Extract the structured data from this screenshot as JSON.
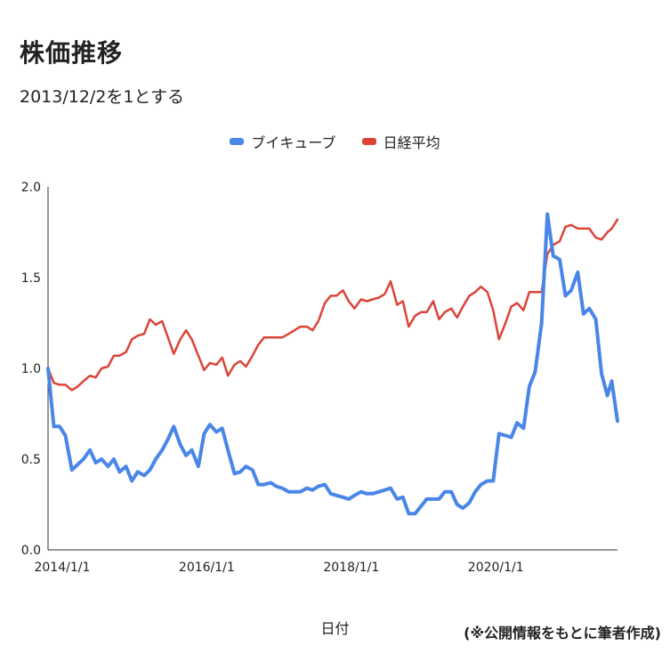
{
  "title": "株価推移",
  "subtitle": "2013/12/2を1とする",
  "source_note": "(※公開情報をもとに筆者作成)",
  "chart_data": {
    "type": "line",
    "xlabel": "日付",
    "ylabel": "",
    "ylim": [
      0.0,
      2.0
    ],
    "y_ticks": [
      "0.0",
      "0.5",
      "1.0",
      "1.5",
      "2.0"
    ],
    "x_ticks": [
      "2014/1/1",
      "2016/1/1",
      "2018/1/1",
      "2020/1/1"
    ],
    "x_tick_values": [
      2014.0,
      2016.0,
      2018.0,
      2020.0
    ],
    "x_range": [
      2013.92,
      2021.8
    ],
    "grid": false,
    "legend": "top",
    "series": [
      {
        "name": "ブイキューブ",
        "color": "#4a86e8",
        "points": [
          [
            2013.92,
            1.0
          ],
          [
            2014.0,
            0.68
          ],
          [
            2014.08,
            0.68
          ],
          [
            2014.16,
            0.63
          ],
          [
            2014.25,
            0.44
          ],
          [
            2014.33,
            0.47
          ],
          [
            2014.41,
            0.5
          ],
          [
            2014.5,
            0.55
          ],
          [
            2014.58,
            0.48
          ],
          [
            2014.66,
            0.5
          ],
          [
            2014.75,
            0.46
          ],
          [
            2014.83,
            0.5
          ],
          [
            2014.91,
            0.43
          ],
          [
            2015.0,
            0.46
          ],
          [
            2015.08,
            0.38
          ],
          [
            2015.16,
            0.43
          ],
          [
            2015.25,
            0.41
          ],
          [
            2015.33,
            0.44
          ],
          [
            2015.41,
            0.5
          ],
          [
            2015.5,
            0.55
          ],
          [
            2015.58,
            0.61
          ],
          [
            2015.66,
            0.68
          ],
          [
            2015.75,
            0.58
          ],
          [
            2015.83,
            0.52
          ],
          [
            2015.91,
            0.55
          ],
          [
            2016.0,
            0.46
          ],
          [
            2016.08,
            0.64
          ],
          [
            2016.16,
            0.69
          ],
          [
            2016.25,
            0.65
          ],
          [
            2016.33,
            0.67
          ],
          [
            2016.41,
            0.55
          ],
          [
            2016.5,
            0.42
          ],
          [
            2016.58,
            0.43
          ],
          [
            2016.66,
            0.46
          ],
          [
            2016.75,
            0.44
          ],
          [
            2016.83,
            0.36
          ],
          [
            2016.91,
            0.36
          ],
          [
            2017.0,
            0.37
          ],
          [
            2017.08,
            0.35
          ],
          [
            2017.16,
            0.34
          ],
          [
            2017.25,
            0.32
          ],
          [
            2017.33,
            0.32
          ],
          [
            2017.41,
            0.32
          ],
          [
            2017.5,
            0.34
          ],
          [
            2017.58,
            0.33
          ],
          [
            2017.66,
            0.35
          ],
          [
            2017.75,
            0.36
          ],
          [
            2017.83,
            0.31
          ],
          [
            2017.91,
            0.3
          ],
          [
            2018.0,
            0.29
          ],
          [
            2018.08,
            0.28
          ],
          [
            2018.16,
            0.3
          ],
          [
            2018.25,
            0.32
          ],
          [
            2018.33,
            0.31
          ],
          [
            2018.41,
            0.31
          ],
          [
            2018.5,
            0.32
          ],
          [
            2018.58,
            0.33
          ],
          [
            2018.66,
            0.34
          ],
          [
            2018.75,
            0.28
          ],
          [
            2018.83,
            0.29
          ],
          [
            2018.91,
            0.2
          ],
          [
            2019.0,
            0.2
          ],
          [
            2019.08,
            0.24
          ],
          [
            2019.16,
            0.28
          ],
          [
            2019.25,
            0.28
          ],
          [
            2019.33,
            0.28
          ],
          [
            2019.41,
            0.32
          ],
          [
            2019.5,
            0.32
          ],
          [
            2019.58,
            0.25
          ],
          [
            2019.66,
            0.23
          ],
          [
            2019.75,
            0.26
          ],
          [
            2019.83,
            0.32
          ],
          [
            2019.91,
            0.36
          ],
          [
            2020.0,
            0.38
          ],
          [
            2020.08,
            0.38
          ],
          [
            2020.16,
            0.64
          ],
          [
            2020.25,
            0.63
          ],
          [
            2020.33,
            0.62
          ],
          [
            2020.41,
            0.7
          ],
          [
            2020.5,
            0.67
          ],
          [
            2020.58,
            0.9
          ],
          [
            2020.66,
            0.98
          ],
          [
            2020.75,
            1.25
          ],
          [
            2020.83,
            1.85
          ],
          [
            2020.91,
            1.62
          ],
          [
            2021.0,
            1.6
          ],
          [
            2021.08,
            1.4
          ],
          [
            2021.16,
            1.43
          ],
          [
            2021.25,
            1.53
          ],
          [
            2021.33,
            1.3
          ],
          [
            2021.41,
            1.33
          ],
          [
            2021.5,
            1.27
          ],
          [
            2021.58,
            0.97
          ],
          [
            2021.66,
            0.85
          ],
          [
            2021.72,
            0.93
          ],
          [
            2021.8,
            0.71
          ]
        ]
      },
      {
        "name": "日経平均",
        "color": "#db4437",
        "points": [
          [
            2013.92,
            1.0
          ],
          [
            2014.0,
            0.92
          ],
          [
            2014.08,
            0.91
          ],
          [
            2014.16,
            0.91
          ],
          [
            2014.25,
            0.88
          ],
          [
            2014.33,
            0.9
          ],
          [
            2014.41,
            0.93
          ],
          [
            2014.5,
            0.96
          ],
          [
            2014.58,
            0.95
          ],
          [
            2014.66,
            1.0
          ],
          [
            2014.75,
            1.01
          ],
          [
            2014.83,
            1.07
          ],
          [
            2014.91,
            1.07
          ],
          [
            2015.0,
            1.09
          ],
          [
            2015.08,
            1.16
          ],
          [
            2015.16,
            1.18
          ],
          [
            2015.25,
            1.19
          ],
          [
            2015.33,
            1.27
          ],
          [
            2015.41,
            1.24
          ],
          [
            2015.5,
            1.26
          ],
          [
            2015.58,
            1.17
          ],
          [
            2015.66,
            1.08
          ],
          [
            2015.75,
            1.16
          ],
          [
            2015.83,
            1.21
          ],
          [
            2015.91,
            1.16
          ],
          [
            2016.0,
            1.07
          ],
          [
            2016.08,
            0.99
          ],
          [
            2016.16,
            1.03
          ],
          [
            2016.25,
            1.02
          ],
          [
            2016.33,
            1.06
          ],
          [
            2016.41,
            0.96
          ],
          [
            2016.5,
            1.02
          ],
          [
            2016.58,
            1.04
          ],
          [
            2016.66,
            1.01
          ],
          [
            2016.75,
            1.07
          ],
          [
            2016.83,
            1.13
          ],
          [
            2016.91,
            1.17
          ],
          [
            2017.0,
            1.17
          ],
          [
            2017.08,
            1.17
          ],
          [
            2017.16,
            1.17
          ],
          [
            2017.25,
            1.19
          ],
          [
            2017.33,
            1.21
          ],
          [
            2017.41,
            1.23
          ],
          [
            2017.5,
            1.23
          ],
          [
            2017.58,
            1.21
          ],
          [
            2017.66,
            1.26
          ],
          [
            2017.75,
            1.36
          ],
          [
            2017.83,
            1.4
          ],
          [
            2017.91,
            1.4
          ],
          [
            2018.0,
            1.43
          ],
          [
            2018.08,
            1.37
          ],
          [
            2018.16,
            1.33
          ],
          [
            2018.25,
            1.38
          ],
          [
            2018.33,
            1.37
          ],
          [
            2018.41,
            1.38
          ],
          [
            2018.5,
            1.39
          ],
          [
            2018.58,
            1.41
          ],
          [
            2018.66,
            1.48
          ],
          [
            2018.75,
            1.35
          ],
          [
            2018.83,
            1.37
          ],
          [
            2018.91,
            1.23
          ],
          [
            2019.0,
            1.29
          ],
          [
            2019.08,
            1.31
          ],
          [
            2019.16,
            1.31
          ],
          [
            2019.25,
            1.37
          ],
          [
            2019.33,
            1.27
          ],
          [
            2019.41,
            1.31
          ],
          [
            2019.5,
            1.33
          ],
          [
            2019.58,
            1.28
          ],
          [
            2019.66,
            1.34
          ],
          [
            2019.75,
            1.4
          ],
          [
            2019.83,
            1.42
          ],
          [
            2019.91,
            1.45
          ],
          [
            2020.0,
            1.42
          ],
          [
            2020.08,
            1.32
          ],
          [
            2020.16,
            1.16
          ],
          [
            2020.25,
            1.25
          ],
          [
            2020.33,
            1.34
          ],
          [
            2020.41,
            1.36
          ],
          [
            2020.5,
            1.32
          ],
          [
            2020.58,
            1.42
          ],
          [
            2020.66,
            1.42
          ],
          [
            2020.75,
            1.42
          ],
          [
            2020.83,
            1.63
          ],
          [
            2020.91,
            1.68
          ],
          [
            2021.0,
            1.7
          ],
          [
            2021.08,
            1.78
          ],
          [
            2021.16,
            1.79
          ],
          [
            2021.25,
            1.77
          ],
          [
            2021.33,
            1.77
          ],
          [
            2021.41,
            1.77
          ],
          [
            2021.5,
            1.72
          ],
          [
            2021.58,
            1.71
          ],
          [
            2021.66,
            1.75
          ],
          [
            2021.72,
            1.77
          ],
          [
            2021.8,
            1.82
          ]
        ]
      }
    ]
  }
}
